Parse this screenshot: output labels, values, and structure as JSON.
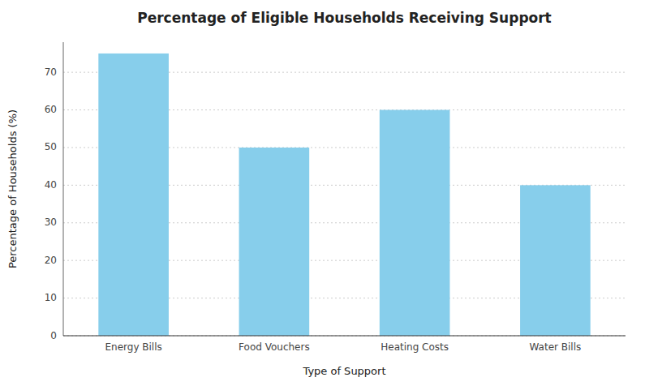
{
  "chart_data": {
    "type": "bar",
    "title": "Percentage of Eligible Households Receiving Support",
    "categories": [
      "Energy Bills",
      "Food Vouchers",
      "Heating Costs",
      "Water Bills"
    ],
    "values": [
      75,
      50,
      60,
      40
    ],
    "color": "#87CEEB",
    "xlabel": "Type of Support",
    "ylabel": "Percentage of Households (%)",
    "ylim": [
      0,
      78
    ],
    "yticks": [
      0,
      10,
      20,
      30,
      40,
      50,
      60,
      70
    ],
    "grid": true
  }
}
